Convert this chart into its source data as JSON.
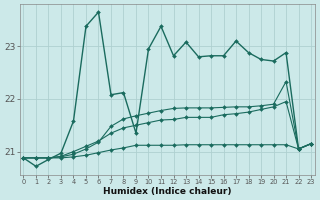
{
  "xlabel": "Humidex (Indice chaleur)",
  "bg_color": "#cce9e9",
  "line_color": "#1a6b5e",
  "grid_color": "#afd0d0",
  "xlim": [
    -0.3,
    23.3
  ],
  "ylim": [
    20.55,
    23.8
  ],
  "yticks": [
    21,
    22,
    23
  ],
  "xticks": [
    0,
    1,
    2,
    3,
    4,
    5,
    6,
    7,
    8,
    9,
    10,
    11,
    12,
    13,
    14,
    15,
    16,
    17,
    18,
    19,
    20,
    21,
    22,
    23
  ],
  "x_values": [
    0,
    1,
    2,
    3,
    4,
    5,
    6,
    7,
    8,
    9,
    10,
    11,
    12,
    13,
    14,
    15,
    16,
    17,
    18,
    19,
    20,
    21,
    22,
    23
  ],
  "series_main": [
    20.88,
    20.72,
    20.85,
    20.97,
    21.58,
    23.38,
    23.65,
    22.08,
    22.12,
    21.35,
    22.95,
    23.38,
    22.82,
    23.08,
    22.8,
    22.82,
    22.82,
    23.1,
    22.88,
    22.75,
    22.72,
    22.88,
    21.05,
    21.15
  ],
  "series_t1": [
    20.88,
    20.88,
    20.88,
    20.9,
    20.95,
    21.05,
    21.18,
    21.48,
    21.62,
    21.68,
    21.73,
    21.78,
    21.82,
    21.83,
    21.83,
    21.83,
    21.84,
    21.85,
    21.85,
    21.87,
    21.9,
    22.33,
    21.05,
    21.15
  ],
  "series_t2": [
    20.88,
    20.88,
    20.88,
    20.91,
    21.0,
    21.1,
    21.2,
    21.35,
    21.45,
    21.5,
    21.55,
    21.6,
    21.61,
    21.65,
    21.65,
    21.65,
    21.7,
    21.72,
    21.75,
    21.8,
    21.85,
    21.95,
    21.05,
    21.15
  ],
  "series_t3": [
    20.88,
    20.88,
    20.88,
    20.88,
    20.9,
    20.93,
    20.98,
    21.03,
    21.07,
    21.12,
    21.12,
    21.12,
    21.12,
    21.13,
    21.13,
    21.13,
    21.13,
    21.13,
    21.13,
    21.13,
    21.13,
    21.13,
    21.05,
    21.15
  ]
}
